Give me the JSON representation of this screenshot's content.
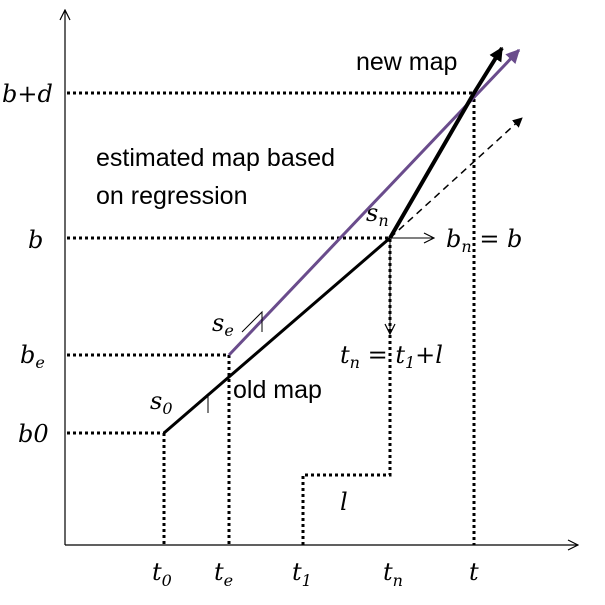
{
  "axes": {
    "y_labels": {
      "b_plus_d": "b+d",
      "b": "b",
      "b_e": "b",
      "b_e_sub": "e",
      "b0": "b0"
    },
    "x_labels": {
      "t0": "t",
      "t0_sub": "0",
      "te": "t",
      "te_sub": "e",
      "t1": "t",
      "t1_sub": "1",
      "tn": "t",
      "tn_sub": "n",
      "t": "t"
    }
  },
  "annotations": {
    "new_map": "new map",
    "estimated_line1": "estimated map based",
    "estimated_line2": "on regression",
    "old_map": "old map",
    "s0": "s",
    "s0_sub": "0",
    "se": "s",
    "se_sub": "e",
    "sn": "s",
    "sn_sub": "n",
    "bn_eq_b": {
      "b": "b",
      "b_sub": "n",
      "eq": " = b"
    },
    "tn_eq": {
      "t": "t",
      "t_sub": "n",
      "eq": " = t",
      "eq_sub": "1",
      "tail": "+l"
    },
    "l": "l"
  },
  "colors": {
    "axis": "#000000",
    "old_map": "#000000",
    "new_map": "#000000",
    "regression": "#6a4c8c",
    "dashed_extension": "#000000"
  }
}
